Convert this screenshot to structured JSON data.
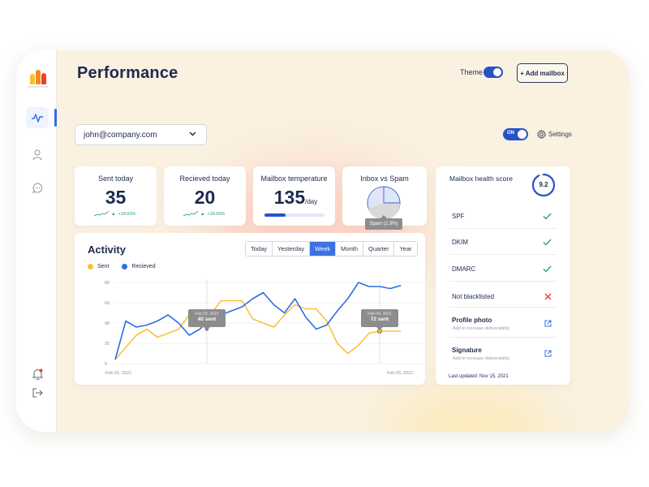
{
  "app": {
    "title": "Performance",
    "theme_label": "Theme",
    "add_mailbox_label": "+ Add mailbox",
    "mailbox_value": "john@company.com",
    "on_label": "ON",
    "settings_label": "Settings"
  },
  "sidebar": {
    "icons": [
      "activity-icon",
      "user-icon",
      "chat-icon",
      "notification-icon",
      "logout-icon"
    ],
    "logo_colors": [
      "#f5c330",
      "#f08a24",
      "#e84424"
    ]
  },
  "stats": {
    "sent": {
      "label": "Sent today",
      "value": "35",
      "trend": "+18.60%"
    },
    "received": {
      "label": "Recieved today",
      "value": "20",
      "trend": "+18.60%"
    },
    "temperature": {
      "label": "Mailbox temperature",
      "value": "135",
      "unit": "/day",
      "level": 0.35
    },
    "inbox_spam": {
      "label": "Inbox vs Spam",
      "tooltip": "Spam (2.3%)"
    }
  },
  "activity": {
    "title": "Activity",
    "tabs": [
      "Today",
      "Yesterday",
      "Week",
      "Month",
      "Quarter",
      "Year"
    ],
    "active_tab": "Week",
    "legend": {
      "sent": "Sent",
      "received": "Recieved"
    },
    "tooltip1": {
      "date": "Feb 02, 2021",
      "value": "40 sent"
    },
    "tooltip2": {
      "date": "Feb 04, 2021",
      "value": "72 sent"
    }
  },
  "chart_data": {
    "type": "line",
    "x_start_label": "Feb 01, 2021",
    "x_end_label": "Feb 05, 2021",
    "y_ticks": [
      0,
      20,
      40,
      60,
      80
    ],
    "ylim": [
      0,
      80
    ],
    "series": [
      {
        "name": "Sent",
        "color": "#f5c33b",
        "values": [
          4,
          16,
          28,
          34,
          26,
          30,
          34,
          48,
          46,
          48,
          62,
          62,
          62,
          44,
          40,
          36,
          48,
          58,
          54,
          54,
          42,
          20,
          10,
          18,
          30,
          32,
          32,
          32
        ]
      },
      {
        "name": "Recieved",
        "color": "#2f6fe0",
        "values": [
          4,
          42,
          36,
          38,
          42,
          48,
          40,
          28,
          34,
          44,
          48,
          52,
          56,
          64,
          70,
          58,
          50,
          64,
          46,
          34,
          38,
          52,
          64,
          80,
          76,
          76,
          74,
          77
        ]
      }
    ]
  },
  "health": {
    "title": "Mailbox health score",
    "score": "9.2",
    "score_fraction": 0.92,
    "rows": [
      {
        "name": "SPF",
        "status": "ok"
      },
      {
        "name": "DKIM",
        "status": "ok"
      },
      {
        "name": "DMARC",
        "status": "ok"
      },
      {
        "name": "Not blacklisted",
        "status": "fail"
      }
    ],
    "links": [
      {
        "name": "Profile photo",
        "sub": "Add to increase deliverability"
      },
      {
        "name": "Signature",
        "sub": "Add to increase deliverability"
      }
    ],
    "last_updated": "Last updated: Nov 15, 2021"
  }
}
